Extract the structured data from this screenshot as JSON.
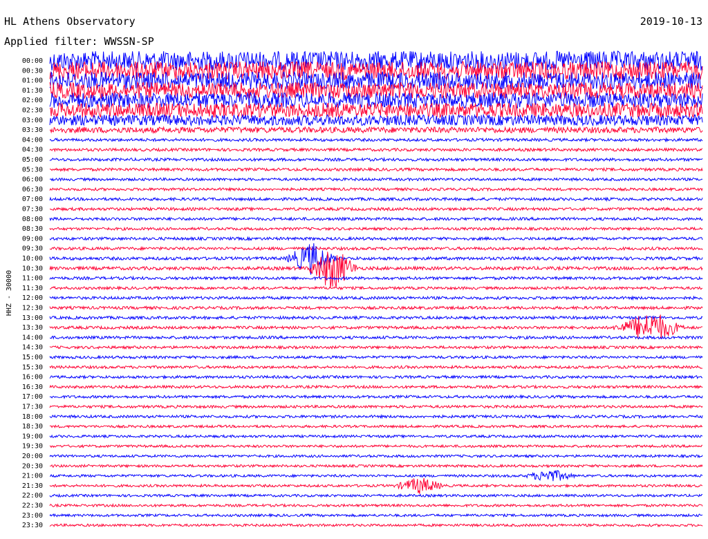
{
  "header": {
    "observatory": "HL Athens Observatory",
    "date": "2019-10-13",
    "filter": "Applied filter: WWSSN-SP"
  },
  "colors": {
    "trace_a": "#0000ff",
    "trace_b": "#ff0033",
    "background": "#ffffff",
    "text": "#000000"
  },
  "chart_data": {
    "type": "line",
    "title": "HL Athens Observatory",
    "subtitle": "Applied filter: WWSSN-SP",
    "ylabel": "HHZ - 30000",
    "xlabel": "",
    "grid": false,
    "legend": "none",
    "row_labels": [
      "00:00",
      "00:30",
      "01:00",
      "01:30",
      "02:00",
      "02:30",
      "03:00",
      "03:30",
      "04:00",
      "04:30",
      "05:00",
      "05:30",
      "06:00",
      "06:30",
      "07:00",
      "07:30",
      "08:00",
      "08:30",
      "09:00",
      "09:30",
      "10:00",
      "10:30",
      "11:00",
      "11:30",
      "12:00",
      "12:30",
      "13:00",
      "13:30",
      "14:00",
      "14:30",
      "15:00",
      "15:30",
      "16:00",
      "16:30",
      "17:00",
      "17:30",
      "18:00",
      "18:30",
      "19:00",
      "19:30",
      "20:00",
      "20:30",
      "21:00",
      "21:30",
      "22:00",
      "22:30",
      "23:00",
      "23:30"
    ],
    "row_noise_level": [
      1.0,
      0.95,
      0.9,
      0.85,
      0.8,
      0.75,
      0.55,
      0.3,
      0.15,
      0.15,
      0.15,
      0.15,
      0.14,
      0.14,
      0.15,
      0.15,
      0.15,
      0.14,
      0.15,
      0.15,
      0.16,
      0.17,
      0.15,
      0.14,
      0.15,
      0.15,
      0.15,
      0.15,
      0.15,
      0.14,
      0.14,
      0.14,
      0.14,
      0.14,
      0.14,
      0.14,
      0.14,
      0.13,
      0.13,
      0.13,
      0.13,
      0.13,
      0.13,
      0.13,
      0.13,
      0.13,
      0.13,
      0.13
    ],
    "events": [
      {
        "row": 20,
        "minute": 12,
        "amplitude": 1.6
      },
      {
        "row": 21,
        "minute": 13,
        "amplitude": 2.2
      },
      {
        "row": 27,
        "minute": 27,
        "amplitude": 0.9
      },
      {
        "row": 27,
        "minute": 28,
        "amplitude": 1.2
      },
      {
        "row": 43,
        "minute": 17,
        "amplitude": 0.8
      },
      {
        "row": 42,
        "minute": 23,
        "amplitude": 0.6
      }
    ]
  }
}
